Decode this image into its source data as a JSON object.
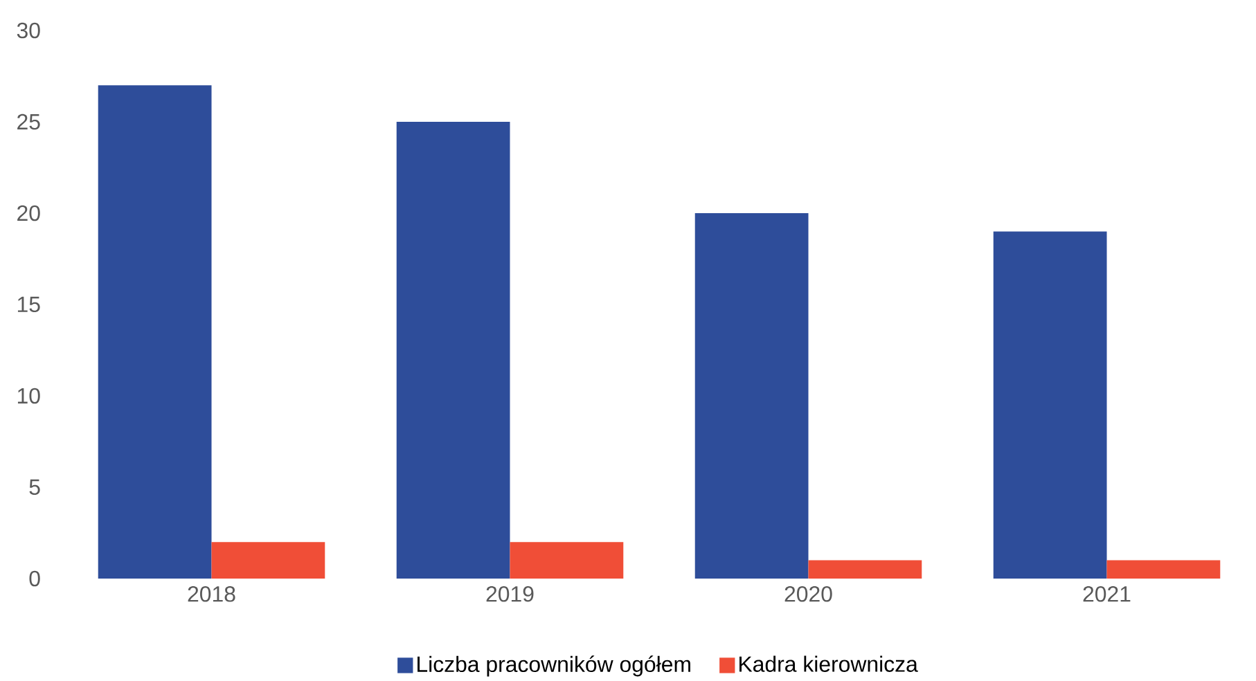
{
  "chart_data": {
    "type": "bar",
    "categories": [
      "2018",
      "2019",
      "2020",
      "2021"
    ],
    "series": [
      {
        "name": "Liczba pracowników ogółem",
        "color": "#2e4d9a",
        "values": [
          27,
          25,
          20,
          19
        ]
      },
      {
        "name": "Kadra kierownicza",
        "color": "#f04e37",
        "values": [
          2,
          2,
          1,
          1
        ]
      }
    ],
    "ylim": [
      0,
      30
    ],
    "yticks": [
      0,
      5,
      10,
      15,
      20,
      25,
      30
    ],
    "legend": "bottom"
  }
}
